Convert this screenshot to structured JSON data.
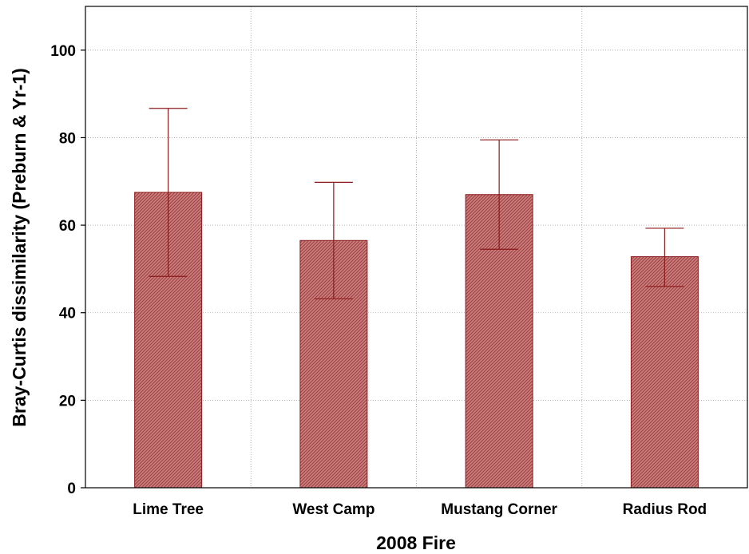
{
  "chart_data": {
    "type": "bar",
    "title": "",
    "xlabel": "2008 Fire",
    "ylabel": "Bray-Curtis dissimilarity (Preburn & Yr-1)",
    "categories": [
      "Lime Tree",
      "West Camp",
      "Mustang Corner",
      "Radius Rod"
    ],
    "values": [
      67.5,
      56.5,
      67.0,
      52.8
    ],
    "error_upper": [
      86.7,
      69.8,
      79.5,
      59.3
    ],
    "error_lower": [
      48.3,
      43.2,
      54.5,
      46.0
    ],
    "ylim": [
      0,
      110
    ],
    "yticks": [
      0,
      20,
      40,
      60,
      80,
      100
    ],
    "grid": true,
    "bar_color": "#b85a5a",
    "bar_edge_color": "#8b1a1a",
    "error_color": "#8b1a1a"
  }
}
